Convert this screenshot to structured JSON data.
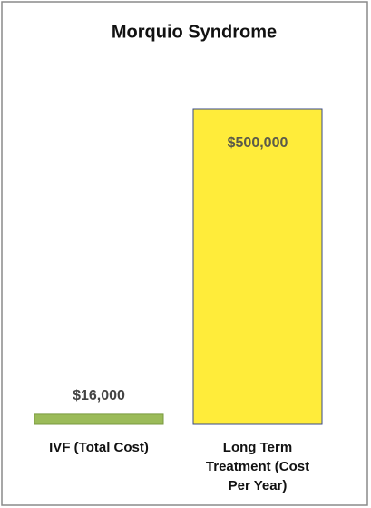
{
  "chart_data": {
    "type": "bar",
    "title": "Morquio Syndrome",
    "categories": [
      "IVF (Total Cost)",
      "Long Term Treatment (Cost Per Year)"
    ],
    "values": [
      16000,
      500000
    ],
    "value_labels": [
      "$16,000",
      "$500,000"
    ],
    "colors": [
      "#9bbb59",
      "#ffec3a"
    ]
  }
}
